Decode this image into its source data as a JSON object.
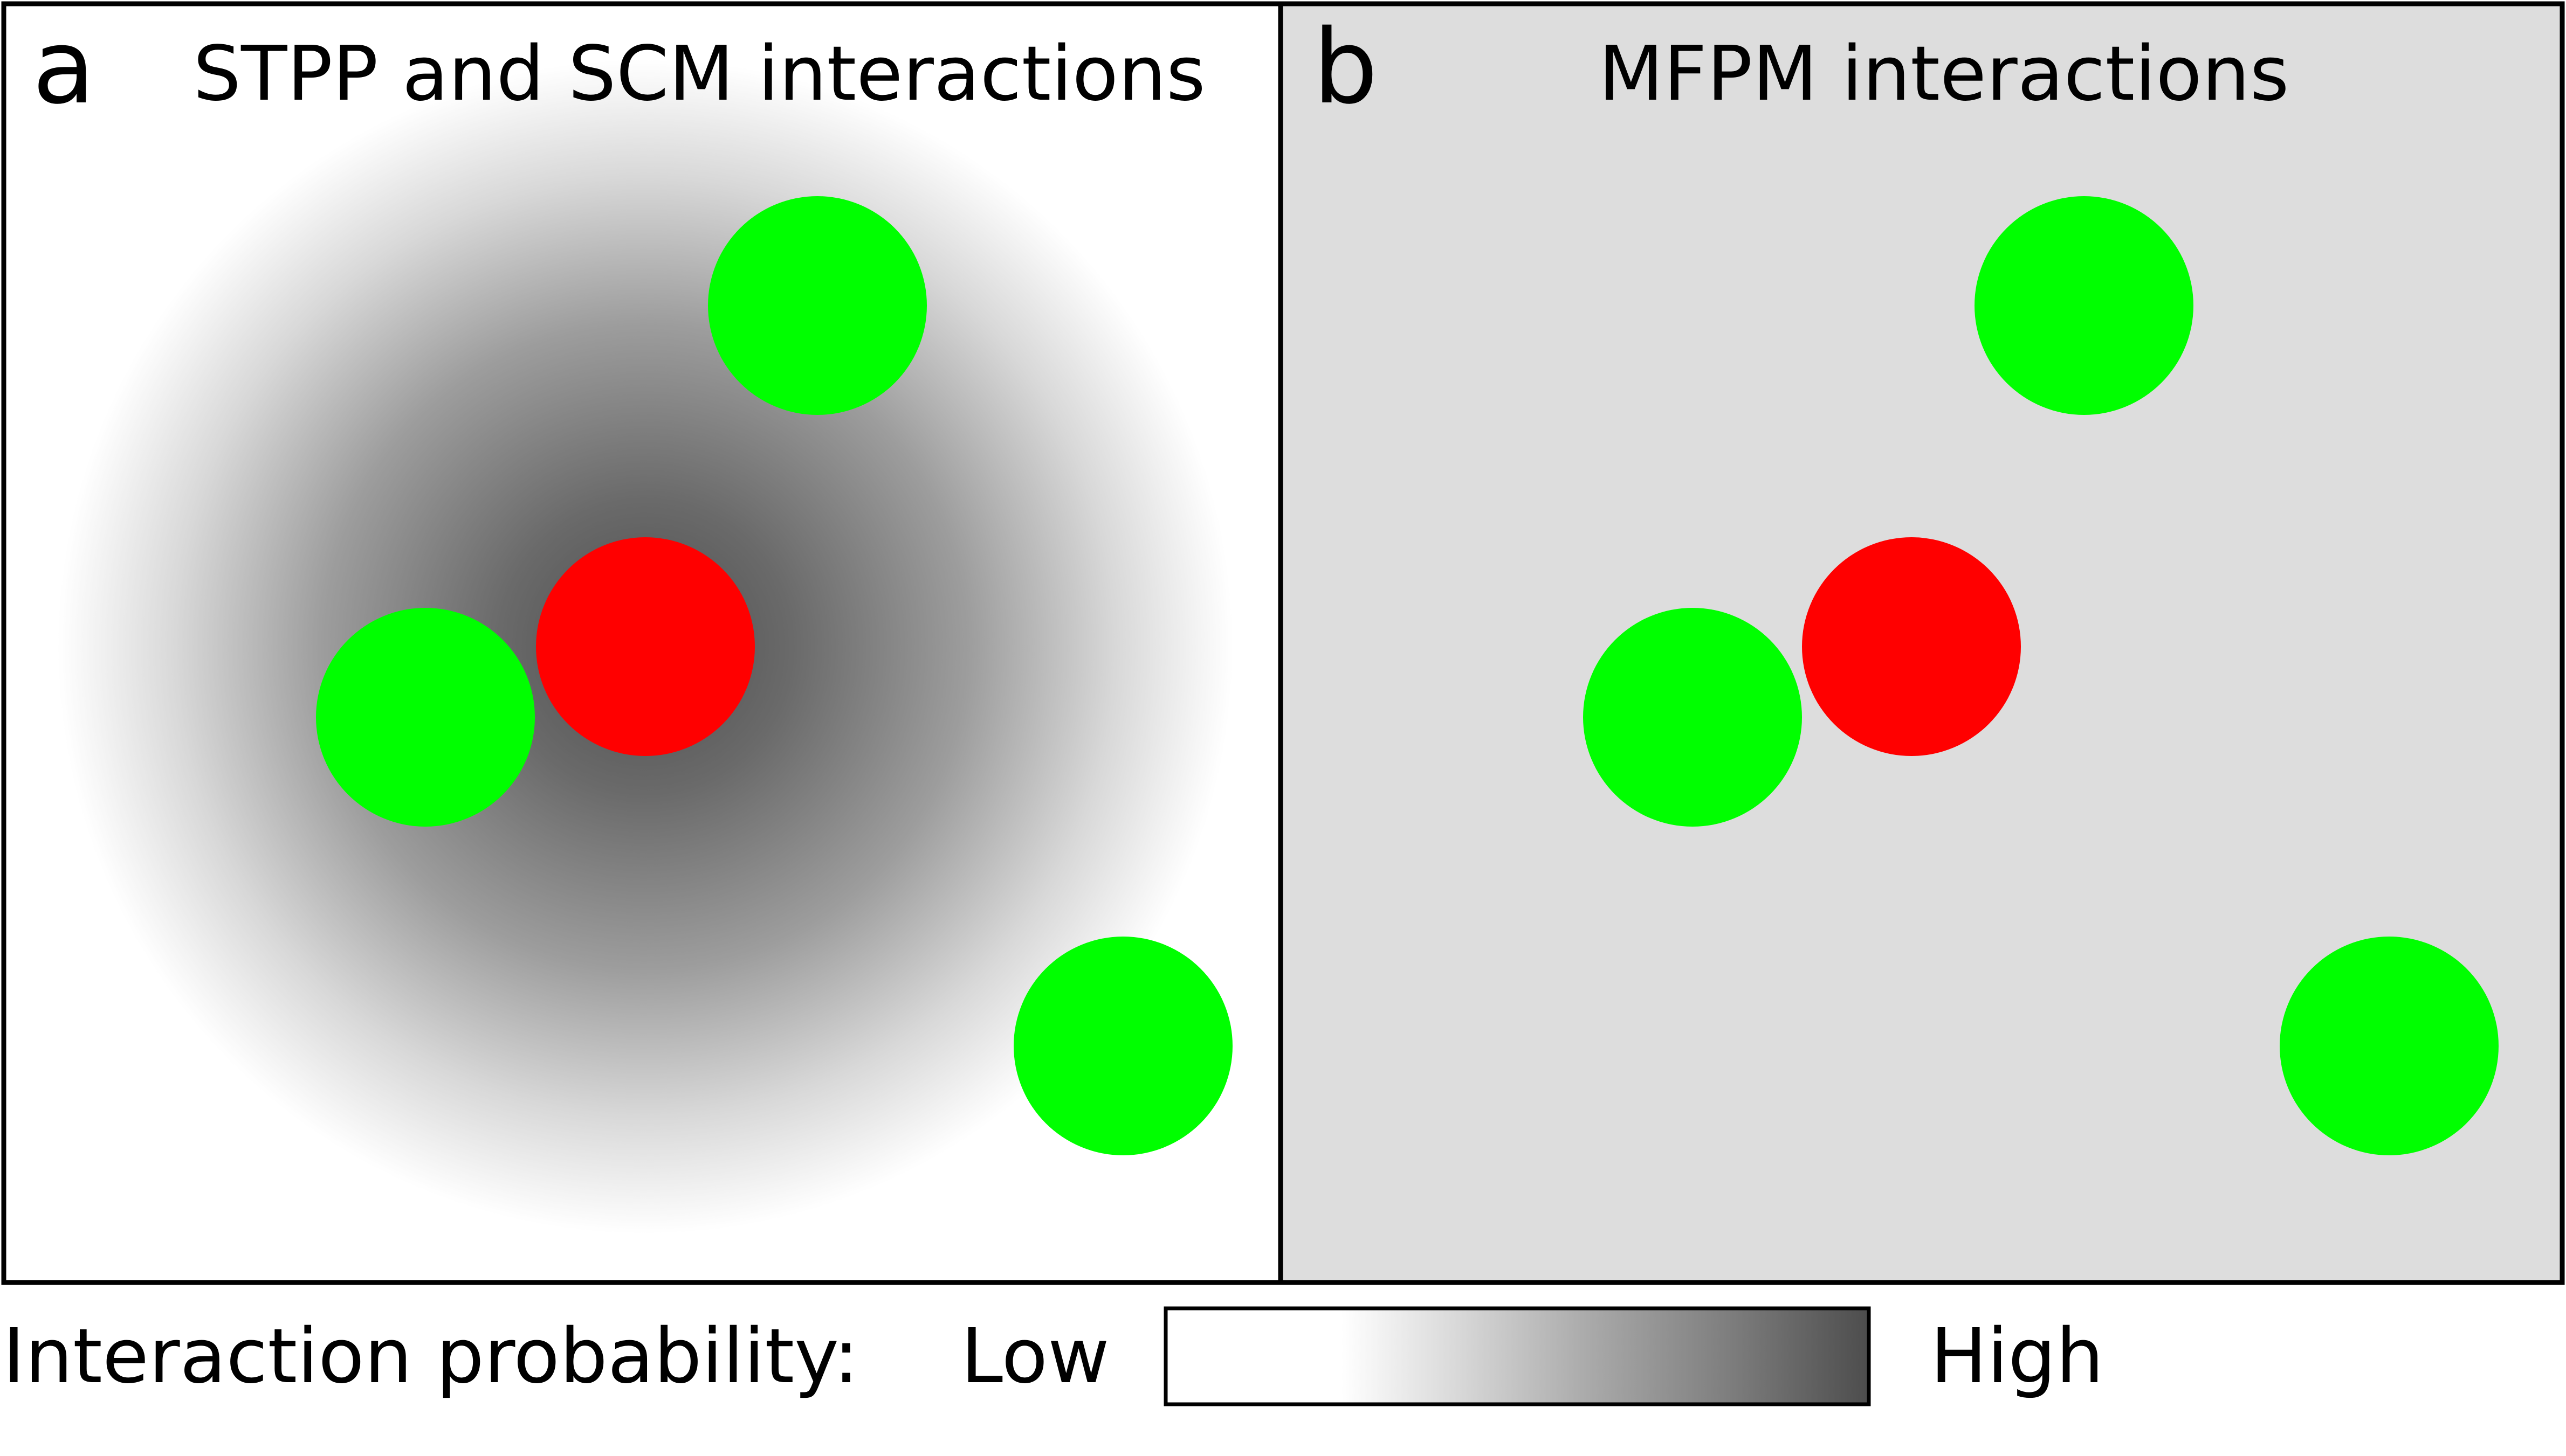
{
  "panel_a": {
    "letter": "a",
    "title": "STPP and SCM interactions"
  },
  "panel_b": {
    "letter": "b",
    "title": "MFPM interactions"
  },
  "legend": {
    "label": "Interaction probability:",
    "low": "Low",
    "high": "High"
  },
  "colors": {
    "focal_node": "#ff0000",
    "neighbor_node": "#00ff00",
    "panel_b_background": "#dddddd",
    "panel_a_background": "#ffffff",
    "border": "#000000",
    "gradient_dark": "#4d4d4d"
  }
}
